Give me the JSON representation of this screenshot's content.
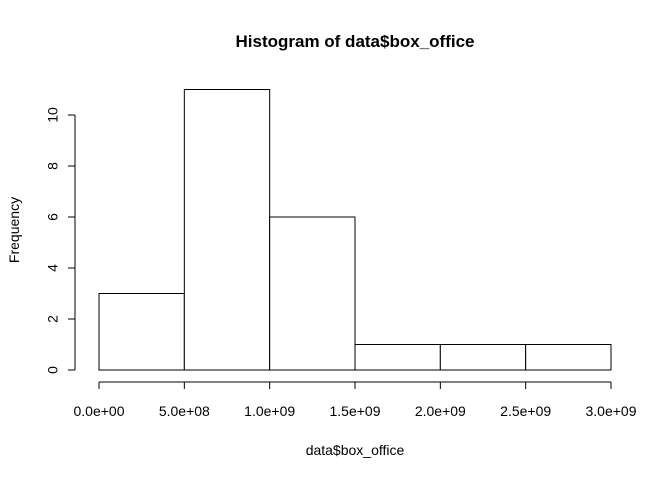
{
  "chart_data": {
    "type": "bar",
    "title": "Histogram of data$box_office",
    "xlabel": "data$box_office",
    "ylabel": "Frequency",
    "bins": [
      {
        "from": 0.0,
        "to": 500000000,
        "count": 3
      },
      {
        "from": 500000000,
        "to": 1000000000,
        "count": 11
      },
      {
        "from": 1000000000,
        "to": 1500000000,
        "count": 6
      },
      {
        "from": 1500000000,
        "to": 2000000000,
        "count": 1
      },
      {
        "from": 2000000000,
        "to": 2500000000,
        "count": 1
      },
      {
        "from": 2500000000,
        "to": 3000000000,
        "count": 1
      }
    ],
    "x_ticks": [
      {
        "value": 0.0,
        "label": "0.0e+00"
      },
      {
        "value": 500000000,
        "label": "5.0e+08"
      },
      {
        "value": 1000000000,
        "label": "1.0e+09"
      },
      {
        "value": 1500000000,
        "label": "1.5e+09"
      },
      {
        "value": 2000000000,
        "label": "2.0e+09"
      },
      {
        "value": 2500000000,
        "label": "2.5e+09"
      },
      {
        "value": 3000000000,
        "label": "3.0e+09"
      }
    ],
    "y_ticks": [
      {
        "value": 0,
        "label": "0"
      },
      {
        "value": 2,
        "label": "2"
      },
      {
        "value": 4,
        "label": "4"
      },
      {
        "value": 6,
        "label": "6"
      },
      {
        "value": 8,
        "label": "8"
      },
      {
        "value": 10,
        "label": "10"
      }
    ],
    "xlim": [
      0,
      3000000000
    ],
    "ylim": [
      0,
      11
    ],
    "grid": false,
    "bar_fill": "#ffffff",
    "bar_stroke": "#000000"
  }
}
